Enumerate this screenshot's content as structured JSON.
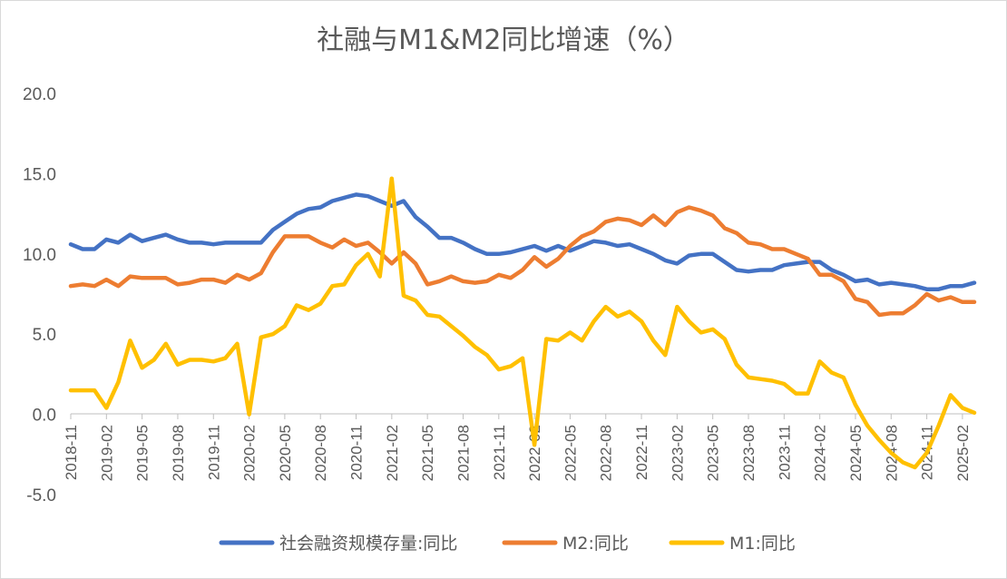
{
  "chart_data": {
    "type": "line",
    "title": "社融与M1&M2同比增速（%）",
    "xlabel": "",
    "ylabel": "",
    "ylim": [
      -5,
      20
    ],
    "yticks": [
      "20.0",
      "15.0",
      "10.0",
      "5.0",
      "0.0",
      "-5.0"
    ],
    "ytick_values": [
      20,
      15,
      10,
      5,
      0,
      -5
    ],
    "grid": false,
    "legend_position": "bottom",
    "x_start": "2018-11",
    "xtick_labels": [
      "2018-11",
      "2019-02",
      "2019-05",
      "2019-08",
      "2019-11",
      "2020-02",
      "2020-05",
      "2020-08",
      "2020-11",
      "2021-02",
      "2021-05",
      "2021-08",
      "2021-11",
      "2022-02",
      "2022-05",
      "2022-08",
      "2022-11",
      "2023-02",
      "2023-05",
      "2023-08",
      "2023-11",
      "2024-02",
      "2024-05",
      "2024-08",
      "2024-11",
      "2025-02"
    ],
    "series": [
      {
        "name": "社会融资规模存量:同比",
        "color": "#4472C4",
        "values": [
          10.6,
          10.3,
          10.3,
          10.9,
          10.7,
          11.2,
          10.8,
          11.0,
          11.2,
          10.9,
          10.7,
          10.7,
          10.6,
          10.7,
          10.7,
          10.7,
          10.7,
          11.5,
          12.0,
          12.5,
          12.8,
          12.9,
          13.3,
          13.5,
          13.7,
          13.6,
          13.3,
          13.0,
          13.3,
          12.3,
          11.7,
          11.0,
          11.0,
          10.7,
          10.3,
          10.0,
          10.0,
          10.1,
          10.3,
          10.5,
          10.2,
          10.5,
          10.2,
          10.5,
          10.8,
          10.7,
          10.5,
          10.6,
          10.3,
          10.0,
          9.6,
          9.4,
          9.9,
          10.0,
          10.0,
          9.5,
          9.0,
          8.9,
          9.0,
          9.0,
          9.3,
          9.4,
          9.5,
          9.5,
          9.0,
          8.7,
          8.3,
          8.4,
          8.1,
          8.2,
          8.1,
          8.0,
          7.8,
          7.8,
          8.0,
          8.0,
          8.2
        ]
      },
      {
        "name": "M2:同比",
        "color": "#ED7D31",
        "values": [
          8.0,
          8.1,
          8.0,
          8.4,
          8.0,
          8.6,
          8.5,
          8.5,
          8.5,
          8.1,
          8.2,
          8.4,
          8.4,
          8.2,
          8.7,
          8.4,
          8.8,
          10.1,
          11.1,
          11.1,
          11.1,
          10.7,
          10.4,
          10.9,
          10.5,
          10.7,
          10.1,
          9.4,
          10.1,
          9.4,
          8.1,
          8.3,
          8.6,
          8.3,
          8.2,
          8.3,
          8.7,
          8.5,
          9.0,
          9.8,
          9.2,
          9.7,
          10.5,
          11.1,
          11.4,
          12.0,
          12.2,
          12.1,
          11.8,
          12.4,
          11.8,
          12.6,
          12.9,
          12.7,
          12.4,
          11.6,
          11.3,
          10.7,
          10.6,
          10.3,
          10.3,
          10.0,
          9.7,
          8.7,
          8.7,
          8.3,
          7.2,
          7.0,
          6.2,
          6.3,
          6.3,
          6.8,
          7.5,
          7.1,
          7.3,
          7.0,
          7.0
        ]
      },
      {
        "name": "M1:同比",
        "color": "#FFC000",
        "values": [
          1.5,
          1.5,
          1.5,
          0.4,
          2.0,
          4.6,
          2.9,
          3.4,
          4.4,
          3.1,
          3.4,
          3.4,
          3.3,
          3.5,
          4.4,
          0.0,
          4.8,
          5.0,
          5.5,
          6.8,
          6.5,
          6.9,
          8.0,
          8.1,
          9.3,
          10.0,
          8.6,
          14.7,
          7.4,
          7.1,
          6.2,
          6.1,
          5.5,
          4.9,
          4.2,
          3.7,
          2.8,
          3.0,
          3.5,
          -1.9,
          4.7,
          4.6,
          5.1,
          4.6,
          5.8,
          6.7,
          6.1,
          6.4,
          5.8,
          4.6,
          3.7,
          6.7,
          5.8,
          5.1,
          5.3,
          4.7,
          3.1,
          2.3,
          2.2,
          2.1,
          1.9,
          1.3,
          1.3,
          3.3,
          2.6,
          2.3,
          0.6,
          -0.7,
          -1.6,
          -2.4,
          -3.0,
          -3.3,
          -2.4,
          -0.7,
          1.2,
          0.4,
          0.1
        ]
      }
    ]
  }
}
